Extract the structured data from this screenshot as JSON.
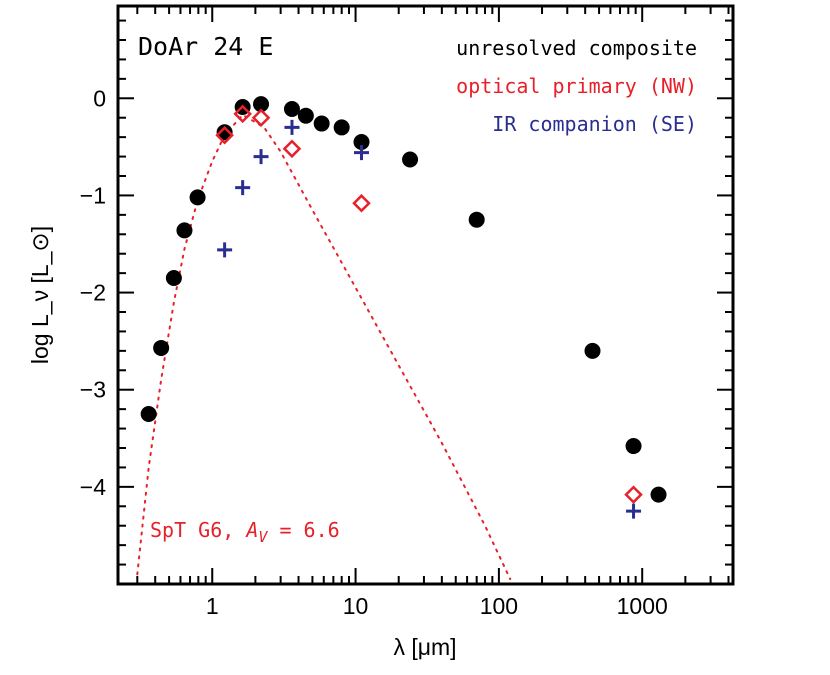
{
  "chart_data": {
    "type": "scatter",
    "title": "DoAr 24 E",
    "xlabel": "λ [μm]",
    "ylabel": "log L_ν [L_⊙]",
    "xscale": "log",
    "xlim": [
      0.22,
      4300
    ],
    "ylim": [
      -5.0,
      0.95
    ],
    "x_ticks": [
      1,
      10,
      100,
      1000
    ],
    "x_tick_labels": [
      "1",
      "10",
      "100",
      "1000"
    ],
    "y_ticks": [
      0,
      -1,
      -2,
      -3,
      -4
    ],
    "y_tick_labels": [
      "0",
      "−1",
      "−2",
      "−3",
      "−4"
    ],
    "grid": false,
    "legend": {
      "position": "top-right",
      "entries": [
        {
          "label": "unresolved composite",
          "color": "#000000"
        },
        {
          "label": "optical primary (NW)",
          "color": "#e8202a"
        },
        {
          "label": "IR companion (SE)",
          "color": "#2a2f8f"
        }
      ]
    },
    "annotation": {
      "text_prefix": "SpT G6, ",
      "text_var": "A",
      "text_sub": "V",
      "text_suffix": " = 6.6",
      "color": "#e8202a"
    },
    "series": [
      {
        "name": "unresolved composite",
        "marker": "circle",
        "color": "#000000",
        "points": [
          [
            0.36,
            -3.25
          ],
          [
            0.44,
            -2.57
          ],
          [
            0.54,
            -1.85
          ],
          [
            0.64,
            -1.36
          ],
          [
            0.79,
            -1.02
          ],
          [
            1.22,
            -0.35
          ],
          [
            1.63,
            -0.09
          ],
          [
            2.19,
            -0.06
          ],
          [
            3.6,
            -0.11
          ],
          [
            4.5,
            -0.18
          ],
          [
            5.8,
            -0.26
          ],
          [
            8.0,
            -0.3
          ],
          [
            11.0,
            -0.45
          ],
          [
            24.0,
            -0.63
          ],
          [
            70.0,
            -1.25
          ],
          [
            450.0,
            -2.6
          ],
          [
            870.0,
            -3.58
          ],
          [
            1300.0,
            -4.08
          ]
        ]
      },
      {
        "name": "optical primary (NW)",
        "marker": "diamond",
        "color": "#e8202a",
        "points": [
          [
            1.22,
            -0.38
          ],
          [
            1.63,
            -0.16
          ],
          [
            2.19,
            -0.2
          ],
          [
            3.6,
            -0.52
          ],
          [
            11.0,
            -1.08
          ],
          [
            870.0,
            -4.08
          ]
        ]
      },
      {
        "name": "IR companion (SE)",
        "marker": "plus",
        "color": "#2a2f8f",
        "points": [
          [
            1.22,
            -1.56
          ],
          [
            1.63,
            -0.92
          ],
          [
            2.19,
            -0.6
          ],
          [
            3.6,
            -0.3
          ],
          [
            11.0,
            -0.56
          ],
          [
            870.0,
            -4.25
          ]
        ]
      },
      {
        "name": "",
        "marker": "dotted-line",
        "color": "#e8202a",
        "points": [
          [
            0.3,
            -4.9
          ],
          [
            0.36,
            -3.8
          ],
          [
            0.44,
            -2.9
          ],
          [
            0.54,
            -2.1
          ],
          [
            0.64,
            -1.55
          ],
          [
            0.79,
            -1.05
          ],
          [
            1.0,
            -0.65
          ],
          [
            1.22,
            -0.38
          ],
          [
            1.63,
            -0.17
          ],
          [
            2.3,
            -0.3
          ],
          [
            3.0,
            -0.55
          ],
          [
            5.0,
            -1.15
          ],
          [
            10.0,
            -1.95
          ],
          [
            20.0,
            -2.75
          ],
          [
            40.0,
            -3.55
          ],
          [
            80.0,
            -4.4
          ],
          [
            120.0,
            -4.95
          ]
        ]
      }
    ]
  }
}
